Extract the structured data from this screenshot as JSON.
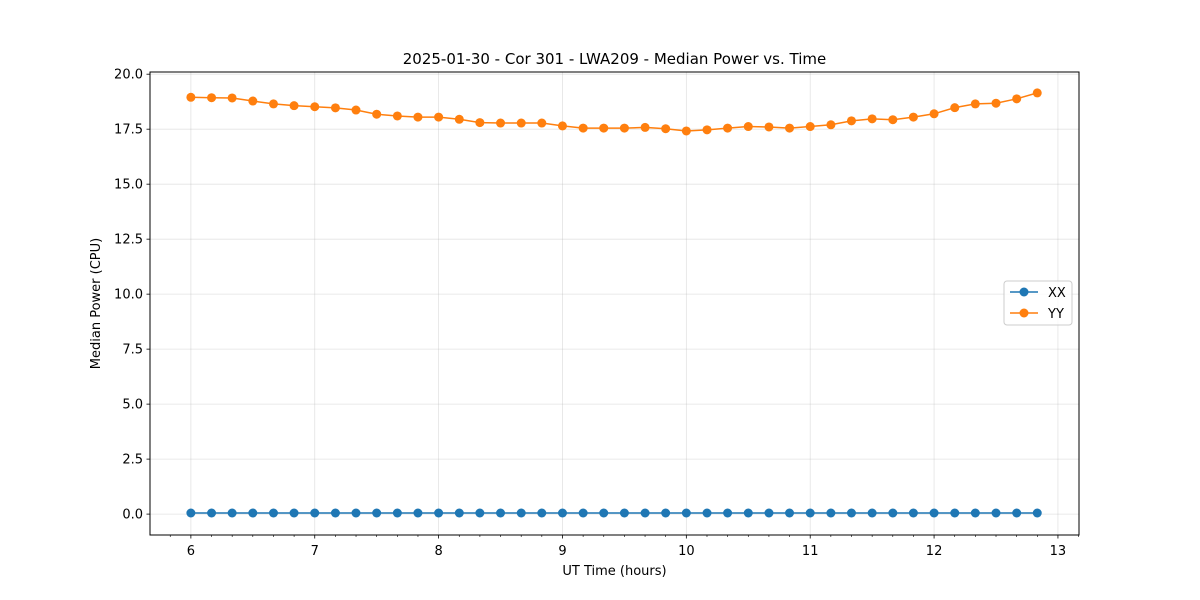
{
  "chart_data": {
    "type": "line",
    "title": "2025-01-30 - Cor 301 - LWA209 - Median Power vs. Time",
    "xlabel": "UT Time (hours)",
    "ylabel": "Median Power (CPU)",
    "xlim": [
      5.67,
      13.17
    ],
    "ylim": [
      -0.95,
      20.1
    ],
    "xticks": [
      6,
      7,
      8,
      9,
      10,
      11,
      12,
      13
    ],
    "yticks": [
      0.0,
      2.5,
      5.0,
      7.5,
      10.0,
      12.5,
      15.0,
      17.5,
      20.0
    ],
    "xtick_labels": [
      "6",
      "7",
      "8",
      "9",
      "10",
      "11",
      "12",
      "13"
    ],
    "ytick_labels": [
      "0.0",
      "2.5",
      "5.0",
      "7.5",
      "10.0",
      "12.5",
      "15.0",
      "17.5",
      "20.0"
    ],
    "grid": true,
    "legend_position": "center-right",
    "x": [
      6.0,
      6.167,
      6.333,
      6.5,
      6.667,
      6.833,
      7.0,
      7.167,
      7.333,
      7.5,
      7.667,
      7.833,
      8.0,
      8.167,
      8.333,
      8.5,
      8.667,
      8.833,
      9.0,
      9.167,
      9.333,
      9.5,
      9.667,
      9.833,
      10.0,
      10.167,
      10.333,
      10.5,
      10.667,
      10.833,
      11.0,
      11.167,
      11.333,
      11.5,
      11.667,
      11.833,
      12.0,
      12.167,
      12.333,
      12.5,
      12.667,
      12.833
    ],
    "series": [
      {
        "name": "XX",
        "color": "#1f77b4",
        "values": [
          0.05,
          0.05,
          0.05,
          0.05,
          0.05,
          0.05,
          0.05,
          0.05,
          0.05,
          0.05,
          0.05,
          0.05,
          0.05,
          0.05,
          0.05,
          0.05,
          0.05,
          0.05,
          0.05,
          0.05,
          0.05,
          0.05,
          0.05,
          0.05,
          0.05,
          0.05,
          0.05,
          0.05,
          0.05,
          0.05,
          0.05,
          0.05,
          0.05,
          0.05,
          0.05,
          0.05,
          0.05,
          0.05,
          0.05,
          0.05,
          0.05,
          0.05
        ]
      },
      {
        "name": "YY",
        "color": "#ff7f0e",
        "values": [
          18.95,
          18.93,
          18.92,
          18.78,
          18.65,
          18.57,
          18.52,
          18.47,
          18.37,
          18.18,
          18.1,
          18.05,
          18.05,
          17.95,
          17.8,
          17.78,
          17.78,
          17.78,
          17.65,
          17.55,
          17.55,
          17.55,
          17.58,
          17.52,
          17.42,
          17.47,
          17.55,
          17.62,
          17.6,
          17.55,
          17.62,
          17.7,
          17.88,
          17.97,
          17.93,
          18.05,
          18.2,
          18.48,
          18.65,
          18.68,
          18.88,
          19.15
        ]
      }
    ]
  }
}
